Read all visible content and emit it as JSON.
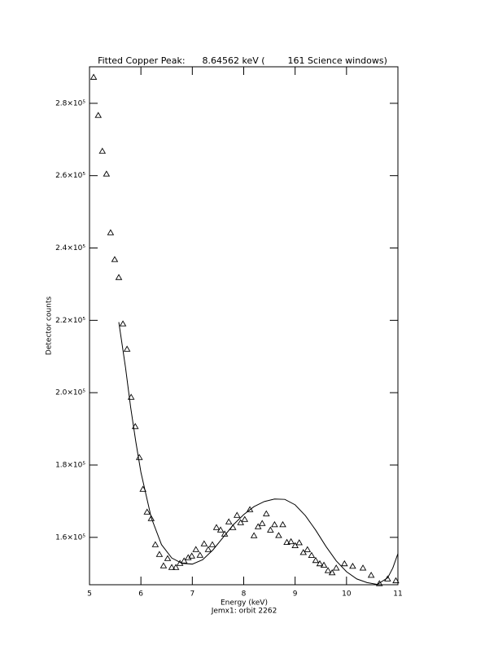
{
  "chart_data": {
    "type": "scatter",
    "title": "Fitted Copper Peak:      8.64562 keV (        161 Science windows)",
    "x_label": "Energy (keV)",
    "subtitle": "Jemx1: orbit 2262",
    "y_label": "Detector counts",
    "xlim": [
      5,
      11
    ],
    "xticks": [
      5,
      6,
      7,
      8,
      9,
      10,
      11
    ],
    "ylim": [
      146900,
      290100
    ],
    "yticks": [
      {
        "value": 160000,
        "label": "1.6×10⁵"
      },
      {
        "value": 180000,
        "label": "1.8×10⁵"
      },
      {
        "value": 200000,
        "label": "2.0×10⁵"
      },
      {
        "value": 220000,
        "label": "2.2×10⁵"
      },
      {
        "value": 240000,
        "label": "2.4×10⁵"
      },
      {
        "value": 260000,
        "label": "2.6×10⁵"
      },
      {
        "value": 280000,
        "label": "2.8×10⁵"
      }
    ],
    "color": "#000000",
    "series": [
      {
        "marker": "triangle",
        "x": [
          5.08,
          5.17,
          5.25,
          5.33,
          5.41,
          5.49,
          5.57,
          5.65,
          5.73,
          5.81,
          5.89,
          5.97,
          6.04,
          6.12,
          6.2,
          6.28,
          6.36,
          6.44,
          6.52,
          6.6,
          6.68,
          6.76,
          6.84,
          6.92,
          6.99,
          7.07,
          7.15,
          7.23,
          7.31,
          7.39,
          7.47,
          7.55,
          7.63,
          7.71,
          7.79,
          7.87,
          7.94,
          8.02,
          8.12,
          8.2,
          8.28,
          8.36,
          8.44,
          8.52,
          8.6,
          8.68,
          8.76,
          8.84,
          8.92,
          9.0,
          9.08,
          9.16,
          9.24,
          9.32,
          9.4,
          9.48,
          9.56,
          9.64,
          9.72,
          9.8,
          9.96,
          10.12,
          10.32,
          10.48,
          10.64,
          10.8,
          10.96
        ],
        "values": [
          287200,
          276650,
          266750,
          260440,
          244220,
          236800,
          231840,
          219010,
          212020,
          198730,
          190630,
          182070,
          173290,
          166980,
          165180,
          157970,
          155270,
          152120,
          154140,
          151670,
          151670,
          152800,
          153470,
          154370,
          154820,
          156620,
          155050,
          158200,
          156620,
          157970,
          162700,
          162030,
          160900,
          164280,
          162700,
          166080,
          164050,
          164950,
          167660,
          160450,
          162930,
          163830,
          166500,
          162000,
          163500,
          160500,
          163500,
          158600,
          158800,
          157700,
          158500,
          155800,
          156600,
          155000,
          153600,
          152700,
          152300,
          150800,
          150200,
          151500,
          152700,
          152000,
          151500,
          149500,
          147200,
          148500,
          148000
        ]
      },
      {
        "marker": "line",
        "x": [
          5.57,
          5.7,
          5.8,
          5.9,
          6.0,
          6.2,
          6.4,
          6.6,
          6.8,
          7.0,
          7.2,
          7.4,
          7.6,
          7.8,
          8.0,
          8.2,
          8.4,
          8.6,
          8.8,
          9.0,
          9.2,
          9.4,
          9.6,
          9.8,
          10.0,
          10.2,
          10.4,
          10.6,
          10.8,
          10.9,
          11.0
        ],
        "values": [
          219500,
          207000,
          196000,
          186500,
          178000,
          165500,
          158000,
          154300,
          152800,
          152600,
          153800,
          156500,
          160000,
          163500,
          166300,
          168500,
          169900,
          170600,
          170500,
          169000,
          166000,
          162000,
          157500,
          153500,
          150500,
          148500,
          147500,
          147000,
          148800,
          151500,
          155500
        ]
      }
    ]
  }
}
